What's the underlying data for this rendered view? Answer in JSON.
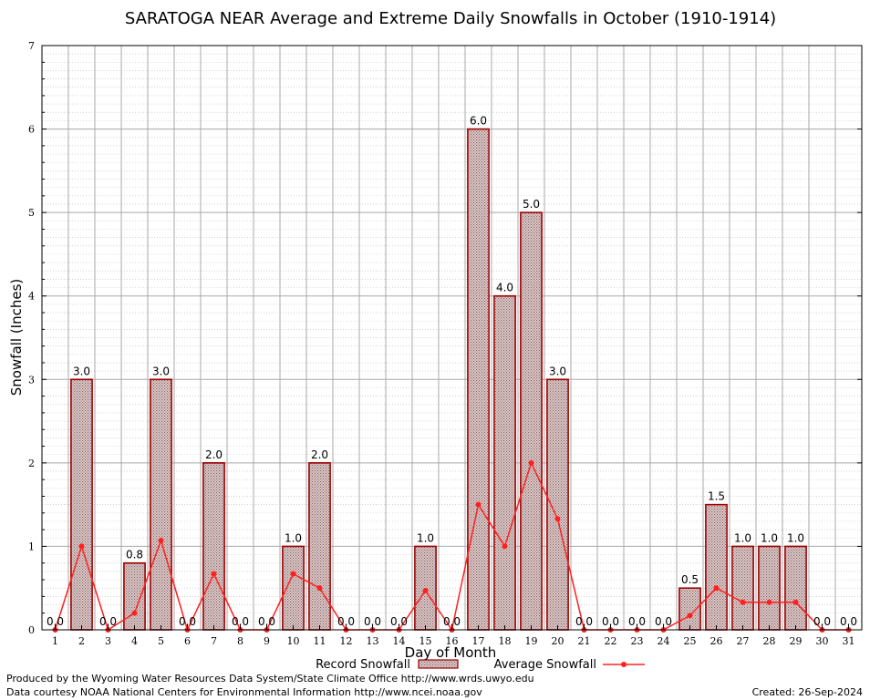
{
  "chart_data": {
    "type": "bar",
    "title": "SARATOGA NEAR Average and Extreme Daily Snowfalls in October (1910-1914)",
    "xlabel": "Day of Month",
    "ylabel": "Snowfall (Inches)",
    "ylim": [
      0,
      7
    ],
    "yticks": [
      0,
      1,
      2,
      3,
      4,
      5,
      6,
      7
    ],
    "categories": [
      "1",
      "2",
      "3",
      "4",
      "5",
      "6",
      "7",
      "8",
      "9",
      "10",
      "11",
      "12",
      "13",
      "14",
      "15",
      "16",
      "17",
      "18",
      "19",
      "20",
      "21",
      "22",
      "23",
      "24",
      "25",
      "26",
      "27",
      "28",
      "29",
      "30",
      "31"
    ],
    "series": [
      {
        "name": "Record Snowfall",
        "type": "bar",
        "color": "#a00000",
        "values": [
          0.0,
          3.0,
          0.0,
          0.8,
          3.0,
          0.0,
          2.0,
          0.0,
          0.0,
          1.0,
          2.0,
          0.0,
          0.0,
          0.0,
          1.0,
          0.0,
          6.0,
          4.0,
          5.0,
          3.0,
          0.0,
          0.0,
          0.0,
          0.0,
          0.5,
          1.5,
          1.0,
          1.0,
          1.0,
          0.0,
          0.0
        ],
        "labels": [
          "0.0",
          "3.0",
          "0.0",
          "0.8",
          "3.0",
          "0.0",
          "2.0",
          "0.0",
          "0.0",
          "1.0",
          "2.0",
          "0.0",
          "0.0",
          "0.0",
          "1.0",
          "0.0",
          "6.0",
          "4.0",
          "5.0",
          "3.0",
          "0.0",
          "0.0",
          "0.0",
          "0.0",
          "0.5",
          "1.5",
          "1.0",
          "1.0",
          "1.0",
          "0.0",
          "0.0"
        ]
      },
      {
        "name": "Average Snowfall",
        "type": "line",
        "color": "#ff2020",
        "values": [
          0.0,
          1.0,
          0.0,
          0.2,
          1.07,
          0.0,
          0.67,
          0.0,
          0.0,
          0.67,
          0.5,
          0.0,
          0.0,
          0.0,
          0.47,
          0.0,
          1.5,
          1.0,
          2.0,
          1.33,
          0.0,
          0.0,
          0.0,
          0.0,
          0.17,
          0.5,
          0.33,
          0.33,
          0.33,
          0.0,
          0.0
        ]
      }
    ],
    "grid": true,
    "legend": "bottom-center"
  },
  "footer": {
    "produced_by": "Produced by the Wyoming Water Resources Data System/State Climate Office http://www.wrds.uwyo.edu",
    "data_courtesy": "Data courtesy NOAA National Centers for Environmental Information http://www.ncei.noaa.gov",
    "created": "Created: 26-Sep-2024"
  }
}
